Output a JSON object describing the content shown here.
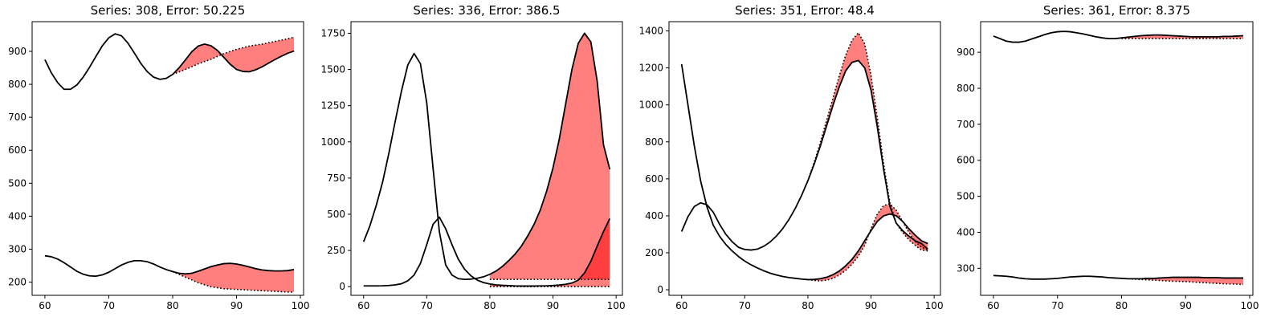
{
  "chart_data": [
    {
      "type": "line",
      "title": "Series: 308, Error: 50.225",
      "xlim": [
        58,
        100.5
      ],
      "ylim": [
        160,
        990
      ],
      "xticks": [
        60,
        70,
        80,
        90,
        100
      ],
      "yticks": [
        200,
        300,
        400,
        500,
        600,
        700,
        800,
        900
      ],
      "series": [
        {
          "style": "solid",
          "x": [
            60,
            61,
            62,
            63,
            64,
            65,
            66,
            67,
            68,
            69,
            70,
            71,
            72,
            73,
            74,
            75,
            76,
            77,
            78,
            79,
            80,
            81,
            82,
            83,
            84,
            85,
            86,
            87,
            88,
            89,
            90,
            91,
            92,
            93,
            94,
            95,
            96,
            97,
            98,
            99
          ],
          "y": [
            875,
            835,
            805,
            785,
            785,
            798,
            822,
            852,
            885,
            917,
            941,
            953,
            947,
            925,
            895,
            864,
            839,
            822,
            815,
            818,
            830,
            850,
            874,
            899,
            916,
            922,
            917,
            903,
            882,
            861,
            845,
            839,
            838,
            844,
            853,
            864,
            875,
            885,
            894,
            901
          ]
        },
        {
          "style": "dotted",
          "x": [
            80,
            82,
            84,
            86,
            88,
            90,
            92,
            94,
            96,
            98,
            99
          ],
          "y": [
            830,
            845,
            862,
            876,
            893,
            906,
            916,
            922,
            930,
            938,
            943
          ]
        },
        {
          "style": "solid",
          "x": [
            60,
            61,
            62,
            63,
            64,
            65,
            66,
            67,
            68,
            69,
            70,
            71,
            72,
            73,
            74,
            75,
            76,
            77,
            78,
            79,
            80,
            81,
            82,
            83,
            84,
            85,
            86,
            87,
            88,
            89,
            90,
            91,
            92,
            93,
            94,
            95,
            96,
            97,
            98,
            99
          ],
          "y": [
            280,
            277,
            270,
            259,
            246,
            233,
            224,
            219,
            218,
            222,
            230,
            241,
            252,
            260,
            265,
            265,
            262,
            255,
            246,
            238,
            232,
            227,
            225,
            227,
            233,
            240,
            247,
            252,
            256,
            257,
            255,
            251,
            246,
            241,
            237,
            235,
            234,
            234,
            235,
            238
          ]
        },
        {
          "style": "dotted",
          "x": [
            80,
            82,
            84,
            86,
            88,
            90,
            92,
            94,
            96,
            98,
            99
          ],
          "y": [
            232,
            215,
            198,
            186,
            180,
            178,
            176,
            174,
            172,
            170,
            170
          ]
        }
      ],
      "fills": [
        [
          0,
          1
        ],
        [
          2,
          3
        ]
      ]
    },
    {
      "type": "line",
      "title": "Series: 336, Error: 386.5",
      "xlim": [
        58,
        101
      ],
      "ylim": [
        -60,
        1830
      ],
      "xticks": [
        60,
        70,
        80,
        90,
        100
      ],
      "yticks": [
        0,
        250,
        500,
        750,
        1000,
        1250,
        1500,
        1750
      ],
      "series": [
        {
          "style": "solid",
          "x": [
            60,
            61,
            62,
            63,
            64,
            65,
            66,
            67,
            68,
            69,
            70,
            71,
            72,
            73,
            74,
            75,
            76,
            77,
            78,
            79,
            80,
            81,
            82,
            83,
            84,
            85,
            86,
            87,
            88,
            89,
            90,
            91,
            92,
            93,
            94,
            95,
            96,
            97,
            98,
            99
          ],
          "y": [
            310,
            420,
            560,
            720,
            920,
            1140,
            1350,
            1530,
            1610,
            1540,
            1270,
            820,
            380,
            150,
            80,
            55,
            50,
            52,
            58,
            68,
            85,
            108,
            140,
            180,
            225,
            280,
            350,
            430,
            530,
            660,
            820,
            1020,
            1260,
            1500,
            1680,
            1750,
            1690,
            1420,
            980,
            810
          ]
        },
        {
          "style": "solid",
          "x": [
            60,
            61,
            62,
            63,
            64,
            65,
            66,
            67,
            68,
            69,
            70,
            71,
            72,
            73,
            74,
            75,
            76,
            77,
            78,
            79,
            80,
            81,
            82,
            83,
            84,
            85,
            86,
            87,
            88,
            89,
            90,
            91,
            92,
            93,
            94,
            95,
            96,
            97,
            98,
            99
          ],
          "y": [
            5,
            5,
            5,
            6,
            8,
            12,
            20,
            40,
            80,
            160,
            290,
            430,
            480,
            400,
            290,
            190,
            120,
            75,
            45,
            28,
            18,
            12,
            9,
            7,
            5,
            4,
            4,
            4,
            5,
            6,
            8,
            11,
            16,
            25,
            45,
            95,
            175,
            280,
            380,
            470
          ]
        },
        {
          "style": "dotted",
          "x": [
            80,
            99
          ],
          "y": [
            50,
            50
          ]
        },
        {
          "style": "dotted",
          "x": [
            80,
            99
          ],
          "y": [
            0,
            0
          ]
        }
      ],
      "fills": [
        [
          0,
          2
        ],
        [
          1,
          3
        ]
      ]
    },
    {
      "type": "line",
      "title": "Series: 351, Error: 48.4",
      "xlim": [
        58,
        101
      ],
      "ylim": [
        -30,
        1450
      ],
      "xticks": [
        60,
        70,
        80,
        90,
        100
      ],
      "yticks": [
        0,
        200,
        400,
        600,
        800,
        1000,
        1200,
        1400
      ],
      "series": [
        {
          "style": "solid",
          "x": [
            60,
            61,
            62,
            63,
            64,
            65,
            66,
            67,
            68,
            69,
            70,
            71,
            72,
            73,
            74,
            75,
            76,
            77,
            78,
            79,
            80,
            81,
            82,
            83,
            84,
            85,
            86,
            87,
            88,
            89,
            90,
            91,
            92,
            93,
            94,
            95,
            96,
            97,
            98,
            99
          ],
          "y": [
            315,
            395,
            450,
            470,
            460,
            420,
            355,
            300,
            260,
            230,
            218,
            215,
            220,
            235,
            258,
            290,
            330,
            380,
            440,
            510,
            590,
            680,
            780,
            890,
            1000,
            1100,
            1185,
            1230,
            1240,
            1200,
            1080,
            880,
            650,
            450,
            360,
            320,
            290,
            265,
            250,
            220
          ]
        },
        {
          "style": "dotted",
          "x": [
            80,
            81,
            82,
            83,
            84,
            85,
            86,
            87,
            88,
            89,
            90,
            91,
            92,
            93,
            94,
            95,
            96,
            97,
            98,
            99
          ],
          "y": [
            590,
            690,
            800,
            920,
            1040,
            1160,
            1270,
            1350,
            1390,
            1330,
            1160,
            930,
            680,
            470,
            360,
            310,
            270,
            240,
            215,
            210
          ]
        },
        {
          "style": "solid",
          "x": [
            60,
            61,
            62,
            63,
            64,
            65,
            66,
            67,
            68,
            69,
            70,
            71,
            72,
            73,
            74,
            75,
            76,
            77,
            78,
            79,
            80,
            81,
            82,
            83,
            84,
            85,
            86,
            87,
            88,
            89,
            90,
            91,
            92,
            93,
            94,
            95,
            96,
            97,
            98,
            99
          ],
          "y": [
            1220,
            1000,
            780,
            590,
            450,
            350,
            290,
            245,
            210,
            180,
            155,
            135,
            118,
            103,
            90,
            80,
            72,
            66,
            62,
            58,
            55,
            56,
            60,
            68,
            82,
            102,
            130,
            165,
            210,
            265,
            320,
            370,
            400,
            410,
            400,
            370,
            330,
            295,
            265,
            250
          ]
        },
        {
          "style": "dotted",
          "x": [
            80,
            81,
            82,
            83,
            84,
            85,
            86,
            87,
            88,
            89,
            90,
            91,
            92,
            93,
            94,
            95,
            96,
            97,
            98,
            99
          ],
          "y": [
            55,
            50,
            48,
            52,
            62,
            80,
            105,
            138,
            182,
            240,
            330,
            410,
            455,
            465,
            430,
            370,
            310,
            260,
            230,
            215
          ]
        }
      ],
      "fills": [
        [
          0,
          1
        ],
        [
          2,
          3
        ]
      ]
    },
    {
      "type": "line",
      "title": "Series: 361, Error: 8.375",
      "xlim": [
        58,
        100.5
      ],
      "ylim": [
        225,
        985
      ],
      "xticks": [
        60,
        70,
        80,
        90,
        100
      ],
      "yticks": [
        300,
        400,
        500,
        600,
        700,
        800,
        900
      ],
      "series": [
        {
          "style": "solid",
          "x": [
            60,
            61,
            62,
            63,
            64,
            65,
            66,
            67,
            68,
            69,
            70,
            71,
            72,
            73,
            74,
            75,
            76,
            77,
            78,
            79,
            80,
            81,
            82,
            83,
            84,
            85,
            86,
            87,
            88,
            89,
            90,
            91,
            92,
            93,
            94,
            95,
            96,
            97,
            98,
            99
          ],
          "y": [
            945,
            938,
            931,
            928,
            928,
            931,
            937,
            943,
            949,
            954,
            957,
            958,
            957,
            954,
            951,
            947,
            943,
            940,
            938,
            938,
            940,
            942,
            944,
            946,
            947,
            948,
            948,
            947,
            946,
            945,
            944,
            943,
            943,
            943,
            943,
            943,
            944,
            944,
            945,
            946
          ]
        },
        {
          "style": "dotted",
          "x": [
            80,
            99
          ],
          "y": [
            938,
            938
          ]
        },
        {
          "style": "solid",
          "x": [
            60,
            61,
            62,
            63,
            64,
            65,
            66,
            67,
            68,
            69,
            70,
            71,
            72,
            73,
            74,
            75,
            76,
            77,
            78,
            79,
            80,
            81,
            82,
            83,
            84,
            85,
            86,
            87,
            88,
            89,
            90,
            91,
            92,
            93,
            94,
            95,
            96,
            97,
            98,
            99
          ],
          "y": [
            280,
            279,
            278,
            276,
            273,
            271,
            270,
            270,
            270,
            271,
            272,
            274,
            276,
            277,
            278,
            278,
            277,
            276,
            274,
            273,
            272,
            271,
            271,
            271,
            272,
            272,
            273,
            274,
            275,
            275,
            275,
            275,
            275,
            274,
            274,
            274,
            273,
            273,
            273,
            273
          ]
        },
        {
          "style": "dotted",
          "x": [
            80,
            82,
            84,
            86,
            88,
            90,
            92,
            94,
            96,
            98,
            99
          ],
          "y": [
            272,
            270,
            268,
            266,
            264,
            263,
            261,
            259,
            257,
            256,
            255
          ]
        }
      ],
      "fills": [
        [
          0,
          1
        ],
        [
          2,
          3
        ]
      ]
    }
  ]
}
